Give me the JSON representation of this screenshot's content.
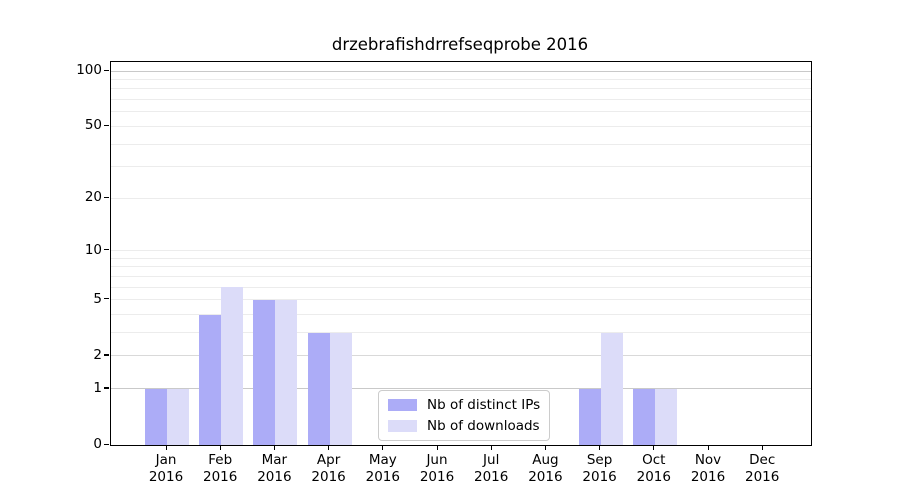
{
  "title": "drzebrafishdrrefseqprobe 2016",
  "chart_data": {
    "type": "bar",
    "title": "drzebrafishdrrefseqprobe 2016",
    "categories": [
      "Jan 2016",
      "Feb 2016",
      "Mar 2016",
      "Apr 2016",
      "May 2016",
      "Jun 2016",
      "Jul 2016",
      "Aug 2016",
      "Sep 2016",
      "Oct 2016",
      "Nov 2016",
      "Dec 2016"
    ],
    "x_tick_lines": [
      {
        "month": "Jan",
        "year": "2016"
      },
      {
        "month": "Feb",
        "year": "2016"
      },
      {
        "month": "Mar",
        "year": "2016"
      },
      {
        "month": "Apr",
        "year": "2016"
      },
      {
        "month": "May",
        "year": "2016"
      },
      {
        "month": "Jun",
        "year": "2016"
      },
      {
        "month": "Jul",
        "year": "2016"
      },
      {
        "month": "Aug",
        "year": "2016"
      },
      {
        "month": "Sep",
        "year": "2016"
      },
      {
        "month": "Oct",
        "year": "2016"
      },
      {
        "month": "Nov",
        "year": "2016"
      },
      {
        "month": "Dec",
        "year": "2016"
      }
    ],
    "series": [
      {
        "name": "Nb of distinct IPs",
        "color": "#acacf7",
        "values": [
          1,
          4,
          5,
          3,
          0,
          0,
          0,
          0,
          1,
          1,
          0,
          0
        ]
      },
      {
        "name": "Nb of downloads",
        "color": "#dcdcf9",
        "values": [
          1,
          6,
          5,
          3,
          0,
          0,
          0,
          0,
          3,
          1,
          0,
          0
        ]
      }
    ],
    "y_axis": {
      "scale": "log1p",
      "tick_values": [
        0,
        1,
        2,
        5,
        10,
        20,
        50,
        100
      ],
      "tick_labels": [
        "0",
        "1",
        "2",
        "5",
        "10",
        "20",
        "50",
        "100"
      ],
      "minor_gridlines": [
        3,
        4,
        6,
        7,
        8,
        9,
        30,
        40,
        60,
        70,
        80,
        90
      ],
      "max_value": 100
    },
    "grid": true,
    "legend_position": "lower center",
    "colors": {
      "grid_minor": "#ececec",
      "grid_emphasis": "#c9c9c9",
      "grid_medium": "#d9d9d9",
      "axis": "#000000",
      "background": "#ffffff"
    }
  }
}
